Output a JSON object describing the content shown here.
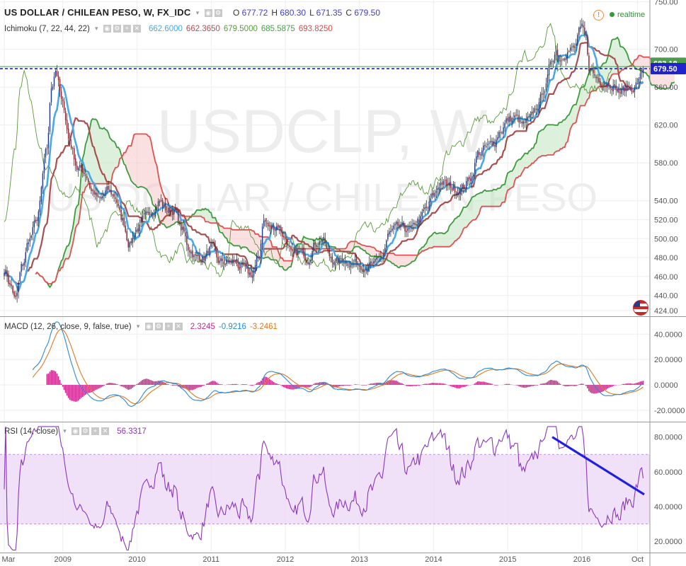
{
  "header": {
    "symbol_title": "US DOLLAR / CHILEAN PESO, W, FX_IDC",
    "ohlc": [
      {
        "label": "O",
        "value": "677.72"
      },
      {
        "label": "H",
        "value": "680.30"
      },
      {
        "label": "L",
        "value": "671.35"
      },
      {
        "label": "C",
        "value": "679.50"
      }
    ],
    "realtime_label": "realtime",
    "watermark_symbol": "USDCLP, W",
    "watermark_name": "US DOLLAR / CHILEAN PESO"
  },
  "indicators": {
    "ichimoku": {
      "label": "Ichimoku (7, 22, 44, 22)",
      "values": [
        {
          "v": "662.6000",
          "color": "#4aa8e8"
        },
        {
          "v": "662.3650",
          "color": "#a85050"
        },
        {
          "v": "679.5000",
          "color": "#5a9a3a"
        },
        {
          "v": "685.5875",
          "color": "#4e9a4e"
        },
        {
          "v": "693.8250",
          "color": "#d84a4a"
        }
      ]
    },
    "macd": {
      "label": "MACD (12, 26, close, 9, false, true)",
      "values": [
        {
          "v": "2.3245",
          "color": "#c8288a"
        },
        {
          "v": "-0.9216",
          "color": "#2a8ad8"
        },
        {
          "v": "-3.2461",
          "color": "#e07820"
        }
      ]
    },
    "rsi": {
      "label": "RSI (14, close)",
      "values": [
        {
          "v": "56.3317",
          "color": "#8a38b8"
        }
      ]
    }
  },
  "colors": {
    "tenkan": "#4aa8e8",
    "kijun": "#a85050",
    "chikou": "#5a9a3a",
    "span_a": "#3f9a3f",
    "span_b": "#e05050",
    "macd_line": "#2a8ad8",
    "signal_line": "#e07820",
    "histogram": "#c8288a",
    "rsi_line": "#8a38b8",
    "rsi_band": "#ebd6f6",
    "candle_up": "#1f3a8a",
    "candle_down": "#9a1a2a",
    "price_line": "#2222cc",
    "trendline": "#2020e0"
  },
  "chart_data": [
    {
      "type": "candlestick",
      "title": "US DOLLAR / CHILEAN PESO, W, FX_IDC",
      "x_range": [
        2008.21,
        2016.84
      ],
      "ylim": [
        418,
        752
      ],
      "y_ticks": [
        424,
        440,
        460,
        480,
        500,
        520,
        540,
        580,
        620,
        660,
        700,
        750
      ],
      "x_ticks": [
        {
          "label": "Mar",
          "x": 2008.21
        },
        {
          "label": "2009",
          "x": 2009.0
        },
        {
          "label": "2010",
          "x": 2010.0
        },
        {
          "label": "2011",
          "x": 2011.0
        },
        {
          "label": "2012",
          "x": 2012.0
        },
        {
          "label": "2013",
          "x": 2013.0
        },
        {
          "label": "2014",
          "x": 2014.0
        },
        {
          "label": "2015",
          "x": 2015.0
        },
        {
          "label": "2016",
          "x": 2016.0
        },
        {
          "label": "Oct",
          "x": 2016.75
        }
      ],
      "price_anchors": [
        [
          2008.21,
          468
        ],
        [
          2008.3,
          450
        ],
        [
          2008.36,
          435
        ],
        [
          2008.45,
          470
        ],
        [
          2008.55,
          500
        ],
        [
          2008.65,
          520
        ],
        [
          2008.78,
          590
        ],
        [
          2008.85,
          660
        ],
        [
          2008.9,
          680
        ],
        [
          2009.0,
          640
        ],
        [
          2009.1,
          600
        ],
        [
          2009.2,
          575
        ],
        [
          2009.3,
          570
        ],
        [
          2009.4,
          550
        ],
        [
          2009.5,
          540
        ],
        [
          2009.6,
          550
        ],
        [
          2009.7,
          545
        ],
        [
          2009.8,
          520
        ],
        [
          2009.9,
          495
        ],
        [
          2010.0,
          510
        ],
        [
          2010.1,
          520
        ],
        [
          2010.2,
          530
        ],
        [
          2010.3,
          540
        ],
        [
          2010.4,
          530
        ],
        [
          2010.5,
          530
        ],
        [
          2010.6,
          510
        ],
        [
          2010.7,
          490
        ],
        [
          2010.8,
          480
        ],
        [
          2010.9,
          480
        ],
        [
          2011.0,
          490
        ],
        [
          2011.1,
          475
        ],
        [
          2011.2,
          475
        ],
        [
          2011.3,
          475
        ],
        [
          2011.4,
          470
        ],
        [
          2011.5,
          462
        ],
        [
          2011.55,
          462
        ],
        [
          2011.65,
          480
        ],
        [
          2011.7,
          520
        ],
        [
          2011.8,
          510
        ],
        [
          2011.9,
          515
        ],
        [
          2012.0,
          500
        ],
        [
          2012.1,
          480
        ],
        [
          2012.2,
          485
        ],
        [
          2012.3,
          480
        ],
        [
          2012.4,
          495
        ],
        [
          2012.5,
          500
        ],
        [
          2012.6,
          480
        ],
        [
          2012.7,
          475
        ],
        [
          2012.8,
          478
        ],
        [
          2012.9,
          475
        ],
        [
          2013.0,
          473
        ],
        [
          2013.1,
          472
        ],
        [
          2013.2,
          472
        ],
        [
          2013.3,
          480
        ],
        [
          2013.4,
          505
        ],
        [
          2013.5,
          510
        ],
        [
          2013.6,
          510
        ],
        [
          2013.7,
          508
        ],
        [
          2013.8,
          520
        ],
        [
          2013.9,
          530
        ],
        [
          2014.0,
          545
        ],
        [
          2014.1,
          560
        ],
        [
          2014.2,
          555
        ],
        [
          2014.3,
          552
        ],
        [
          2014.4,
          555
        ],
        [
          2014.5,
          565
        ],
        [
          2014.6,
          590
        ],
        [
          2014.7,
          595
        ],
        [
          2014.8,
          600
        ],
        [
          2014.9,
          615
        ],
        [
          2015.0,
          625
        ],
        [
          2015.1,
          628
        ],
        [
          2015.2,
          620
        ],
        [
          2015.3,
          625
        ],
        [
          2015.4,
          640
        ],
        [
          2015.5,
          660
        ],
        [
          2015.6,
          690
        ],
        [
          2015.65,
          700
        ],
        [
          2015.7,
          690
        ],
        [
          2015.8,
          700
        ],
        [
          2015.9,
          700
        ],
        [
          2015.96,
          718
        ],
        [
          2016.0,
          720
        ],
        [
          2016.05,
          710
        ],
        [
          2016.1,
          680
        ],
        [
          2016.2,
          670
        ],
        [
          2016.3,
          665
        ],
        [
          2016.4,
          665
        ],
        [
          2016.45,
          660
        ],
        [
          2016.5,
          655
        ],
        [
          2016.6,
          658
        ],
        [
          2016.7,
          660
        ],
        [
          2016.75,
          665
        ],
        [
          2016.84,
          679.5
        ]
      ],
      "ichimoku_values": {
        "tenkan": 662.6,
        "kijun": 662.365,
        "chikou": 679.5,
        "span_a": 685.5875,
        "span_b": 693.825
      },
      "price_labels": [
        "683.18",
        "679.50"
      ],
      "last_close": 679.5
    },
    {
      "type": "line",
      "title": "MACD (12, 26, close, 9, false, true)",
      "ylim": [
        -29,
        53
      ],
      "y_ticks": [
        "40.0000",
        "20.0000",
        "0.0000",
        "-20.0000"
      ],
      "y_tick_values": [
        40,
        20,
        0,
        -20
      ],
      "series": [
        {
          "name": "MACD",
          "last": -0.9216
        },
        {
          "name": "Signal",
          "last": -3.2461
        },
        {
          "name": "Histogram",
          "last": 2.3245
        }
      ]
    },
    {
      "type": "line",
      "title": "RSI (14, close)",
      "ylim": [
        14,
        88
      ],
      "y_ticks": [
        "80.0000",
        "60.0000",
        "40.0000",
        "20.0000"
      ],
      "y_tick_values": [
        80,
        60,
        40,
        20
      ],
      "band": [
        30,
        70
      ],
      "last": 56.3317,
      "trendline": [
        [
          2015.6,
          80
        ],
        [
          2016.84,
          47
        ]
      ]
    }
  ]
}
